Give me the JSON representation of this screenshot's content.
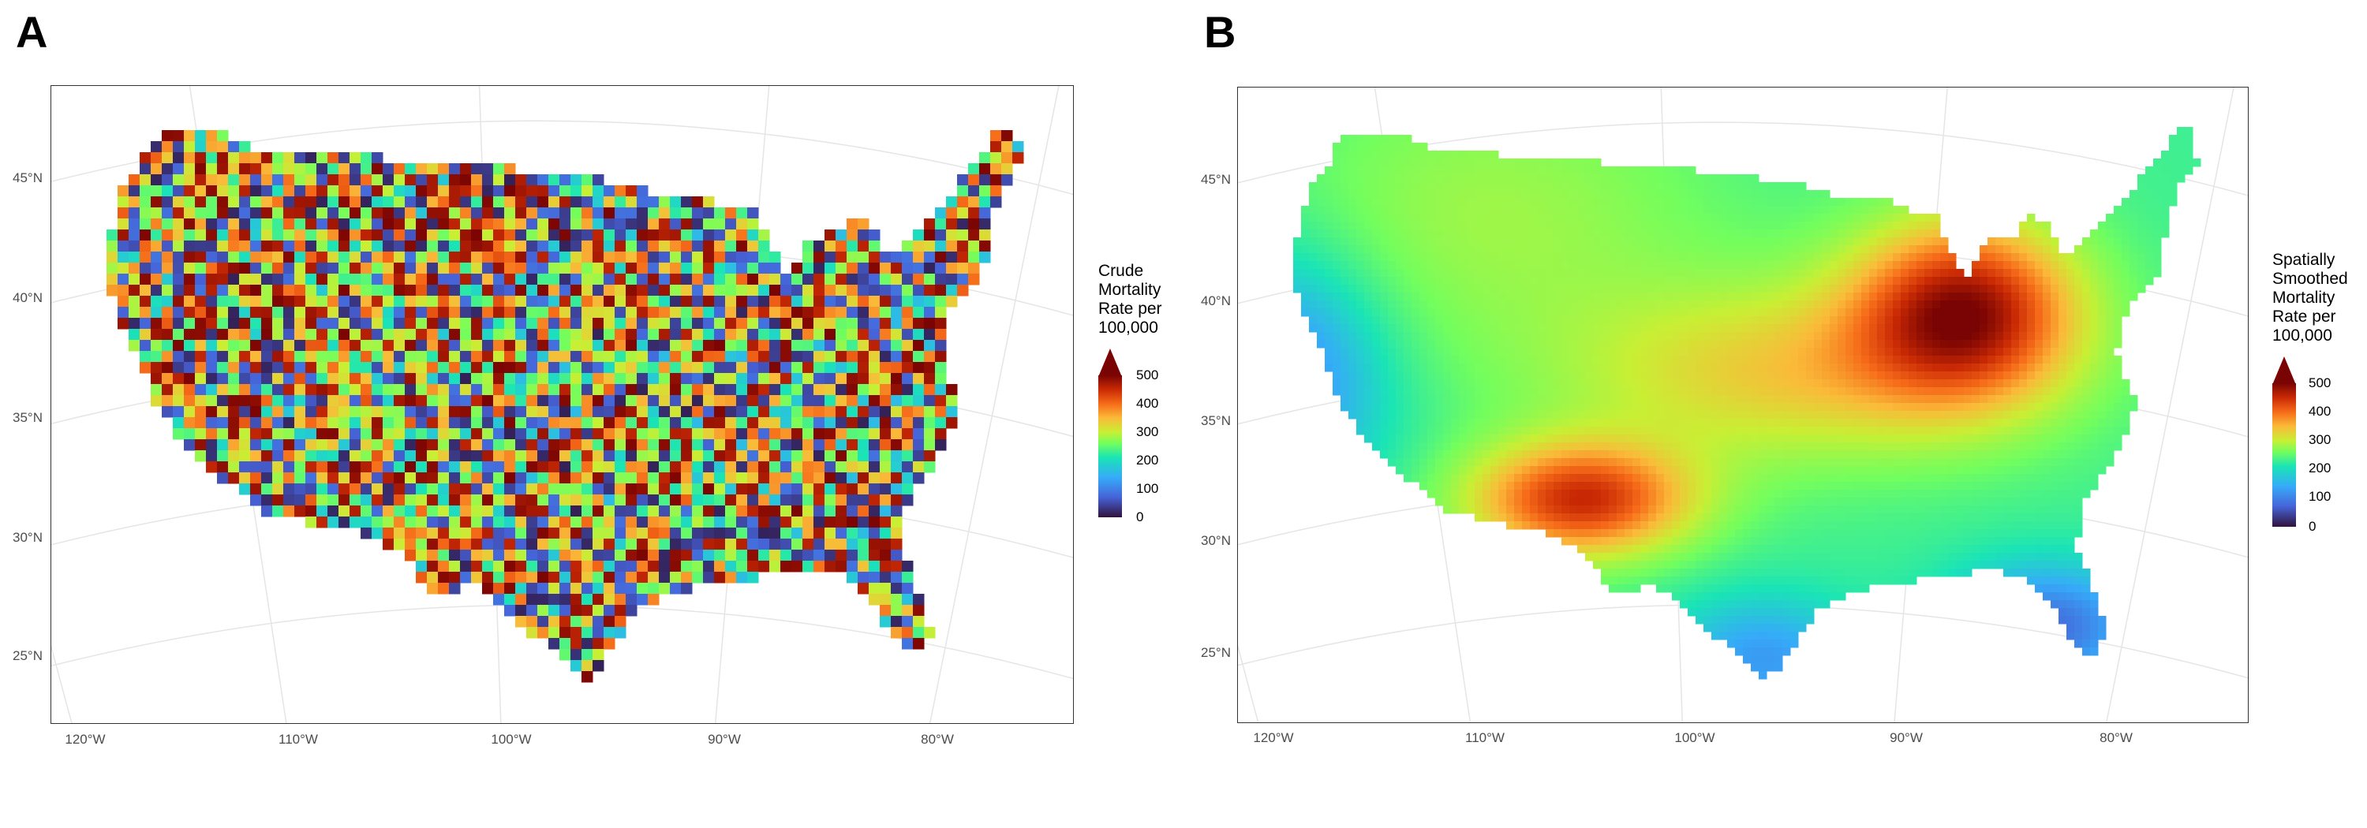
{
  "panels": [
    {
      "id": "A",
      "label": "A",
      "title": "Crude Mortality Rate per 100,000",
      "legend_title_lines": [
        "Crude",
        "Mortality",
        "Rate per",
        "100,000"
      ],
      "style": "crude"
    },
    {
      "id": "B",
      "label": "B",
      "title": "Spatially Smoothed Mortality Rate per 100,000",
      "legend_title_lines": [
        "Spatially",
        "Smoothed",
        "Mortality",
        "Rate per",
        "100,000"
      ],
      "style": "smoothed"
    }
  ],
  "axes": {
    "lat_ticks": [
      "45°N",
      "40°N",
      "35°N",
      "30°N",
      "25°N"
    ],
    "lon_ticks": [
      "120°W",
      "110°W",
      "100°W",
      "90°W",
      "80°W"
    ]
  },
  "legend": {
    "tick_labels": [
      "500",
      "400",
      "300",
      "200",
      "100",
      "0"
    ],
    "range": [
      0,
      500
    ],
    "colormap": "turbo",
    "colors": [
      "#30123b",
      "#4662d7",
      "#36aaf9",
      "#1ae4b6",
      "#72fe5e",
      "#c8ef34",
      "#faba39",
      "#f66b19",
      "#ca2a04",
      "#7a0403"
    ]
  }
}
